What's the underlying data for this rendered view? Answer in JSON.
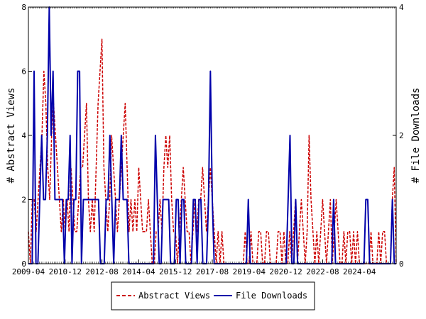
{
  "chart_data": {
    "type": "line",
    "x_start": "2009-04",
    "x_end": "2025-12",
    "xtick_labels": [
      "2009-04",
      "2010-12",
      "2012-08",
      "2014-04",
      "2015-12",
      "2017-08",
      "2019-04",
      "2020-12",
      "2022-08",
      "2024-04"
    ],
    "ylabel_left": "# Abstract Views",
    "ylabel_right": "# File Downloads",
    "ylim_left": [
      0,
      8
    ],
    "ylim_right": [
      0,
      4
    ],
    "yticks_left": [
      0,
      2,
      4,
      6,
      8
    ],
    "yticks_right": [
      0,
      2,
      4
    ],
    "legend_placement": "bottom-center",
    "series": [
      {
        "name": "Abstract Views",
        "axis": "left",
        "color": "#cc0000",
        "style": "dashed",
        "values": [
          1,
          0,
          2,
          2,
          1,
          2,
          3,
          4,
          6,
          5,
          3,
          2,
          4,
          5,
          4,
          3,
          2,
          1,
          2,
          1,
          2,
          1,
          3,
          2,
          1,
          1,
          2,
          3,
          3,
          4,
          5,
          2,
          1,
          2,
          1,
          3,
          5,
          6,
          7,
          3,
          2,
          1,
          2,
          4,
          3,
          2,
          1,
          2,
          3,
          4,
          5,
          3,
          1,
          2,
          1,
          2,
          1,
          3,
          2,
          1,
          1,
          1,
          2,
          1,
          0,
          0,
          1,
          1,
          2,
          1,
          3,
          4,
          3,
          4,
          2,
          1,
          1,
          0,
          1,
          2,
          3,
          2,
          1,
          1,
          0,
          1,
          2,
          1,
          2,
          2,
          3,
          2,
          1,
          2,
          3,
          2,
          1,
          0,
          1,
          0,
          1,
          0,
          0,
          0,
          0,
          0,
          0,
          0,
          0,
          0,
          0,
          0,
          1,
          0,
          0,
          1,
          0,
          0,
          0,
          1,
          1,
          0,
          0,
          1,
          1,
          0,
          0,
          0,
          0,
          1,
          1,
          0,
          1,
          0,
          0,
          1,
          0,
          1,
          2,
          0,
          1,
          2,
          1,
          0,
          1,
          4,
          2,
          1,
          0,
          1,
          0,
          1,
          2,
          1,
          0,
          1,
          2,
          0,
          1,
          2,
          1,
          0,
          0,
          1,
          0,
          1,
          1,
          0,
          1,
          0,
          1,
          0,
          0,
          0,
          0,
          0,
          0,
          1,
          0,
          0,
          0,
          1,
          0,
          1,
          1,
          0,
          0,
          0,
          2,
          3,
          0
        ]
      },
      {
        "name": "File Downloads",
        "axis": "right",
        "color": "#0000aa",
        "style": "solid",
        "values": [
          0,
          0,
          0,
          3,
          0,
          0,
          1,
          2,
          1,
          1,
          2,
          4,
          2,
          3,
          1,
          1,
          1,
          1,
          1,
          0,
          1,
          1,
          2,
          0,
          1,
          1,
          3,
          3,
          0,
          1,
          1,
          1,
          1,
          1,
          1,
          1,
          1,
          1,
          0,
          0,
          0,
          1,
          1,
          2,
          1,
          0,
          1,
          1,
          1,
          2,
          1,
          1,
          1,
          0,
          0,
          0,
          0,
          0,
          0,
          0,
          0,
          0,
          0,
          0,
          0,
          0,
          0,
          2,
          1,
          0,
          0,
          1,
          1,
          1,
          1,
          0,
          0,
          0,
          1,
          1,
          0,
          1,
          1,
          0,
          0,
          0,
          0,
          1,
          1,
          0,
          1,
          1,
          0,
          0,
          0,
          1,
          3,
          1,
          0,
          0,
          0,
          0,
          0,
          0,
          0,
          0,
          0,
          0,
          0,
          0,
          0,
          0,
          0,
          0,
          0,
          0,
          1,
          0,
          0,
          0,
          0,
          0,
          0,
          0,
          0,
          0,
          0,
          0,
          0,
          0,
          0,
          0,
          0,
          0,
          0,
          0,
          0,
          1,
          2,
          0,
          0,
          1,
          0,
          0,
          0,
          0,
          0,
          0,
          0,
          0,
          0,
          0,
          0,
          0,
          0,
          0,
          0,
          0,
          0,
          0,
          0,
          1,
          0,
          0,
          0,
          0,
          0,
          0,
          0,
          0,
          0,
          0,
          0,
          0,
          0,
          0,
          0,
          0,
          1,
          1,
          0,
          0,
          0,
          0,
          0,
          0,
          0,
          0,
          0,
          0,
          0,
          0,
          1,
          0,
          0
        ]
      }
    ]
  }
}
